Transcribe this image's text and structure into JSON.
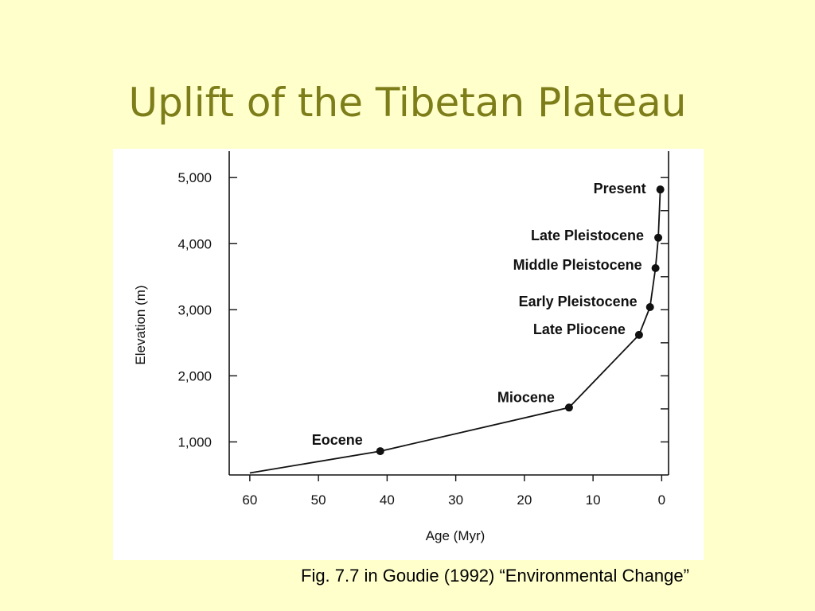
{
  "slide": {
    "title": "Uplift of the Tibetan Plateau",
    "caption": "Fig. 7.7 in Goudie (1992) “Environmental Change”"
  },
  "chart_data": {
    "type": "line",
    "title": "",
    "xlabel": "Age (Myr)",
    "ylabel": "Elevation (m)",
    "xlim": [
      63,
      -1
    ],
    "ylim": [
      500,
      5400
    ],
    "x_reversed": true,
    "xticks": [
      60,
      50,
      40,
      30,
      20,
      10,
      0
    ],
    "yticks": [
      1000,
      2000,
      3000,
      4000,
      5000
    ],
    "ytick_labels": [
      "1,000",
      "2,000",
      "3,000",
      "4,000",
      "5,000"
    ],
    "grid": false,
    "series": [
      {
        "x": [
          60,
          41,
          13.5,
          3.3,
          1.7,
          0.9,
          0.5,
          0.2
        ],
        "y": [
          530,
          860,
          1520,
          2620,
          3040,
          3630,
          4090,
          4820
        ],
        "point_labels": [
          "",
          "Eocene",
          "Miocene",
          "Late Pliocene",
          "Early  Pleistocene",
          "Middle Pleistocene",
          "Late Pleistocene",
          "Present"
        ],
        "markers": [
          false,
          true,
          true,
          true,
          true,
          true,
          true,
          true
        ]
      }
    ]
  }
}
